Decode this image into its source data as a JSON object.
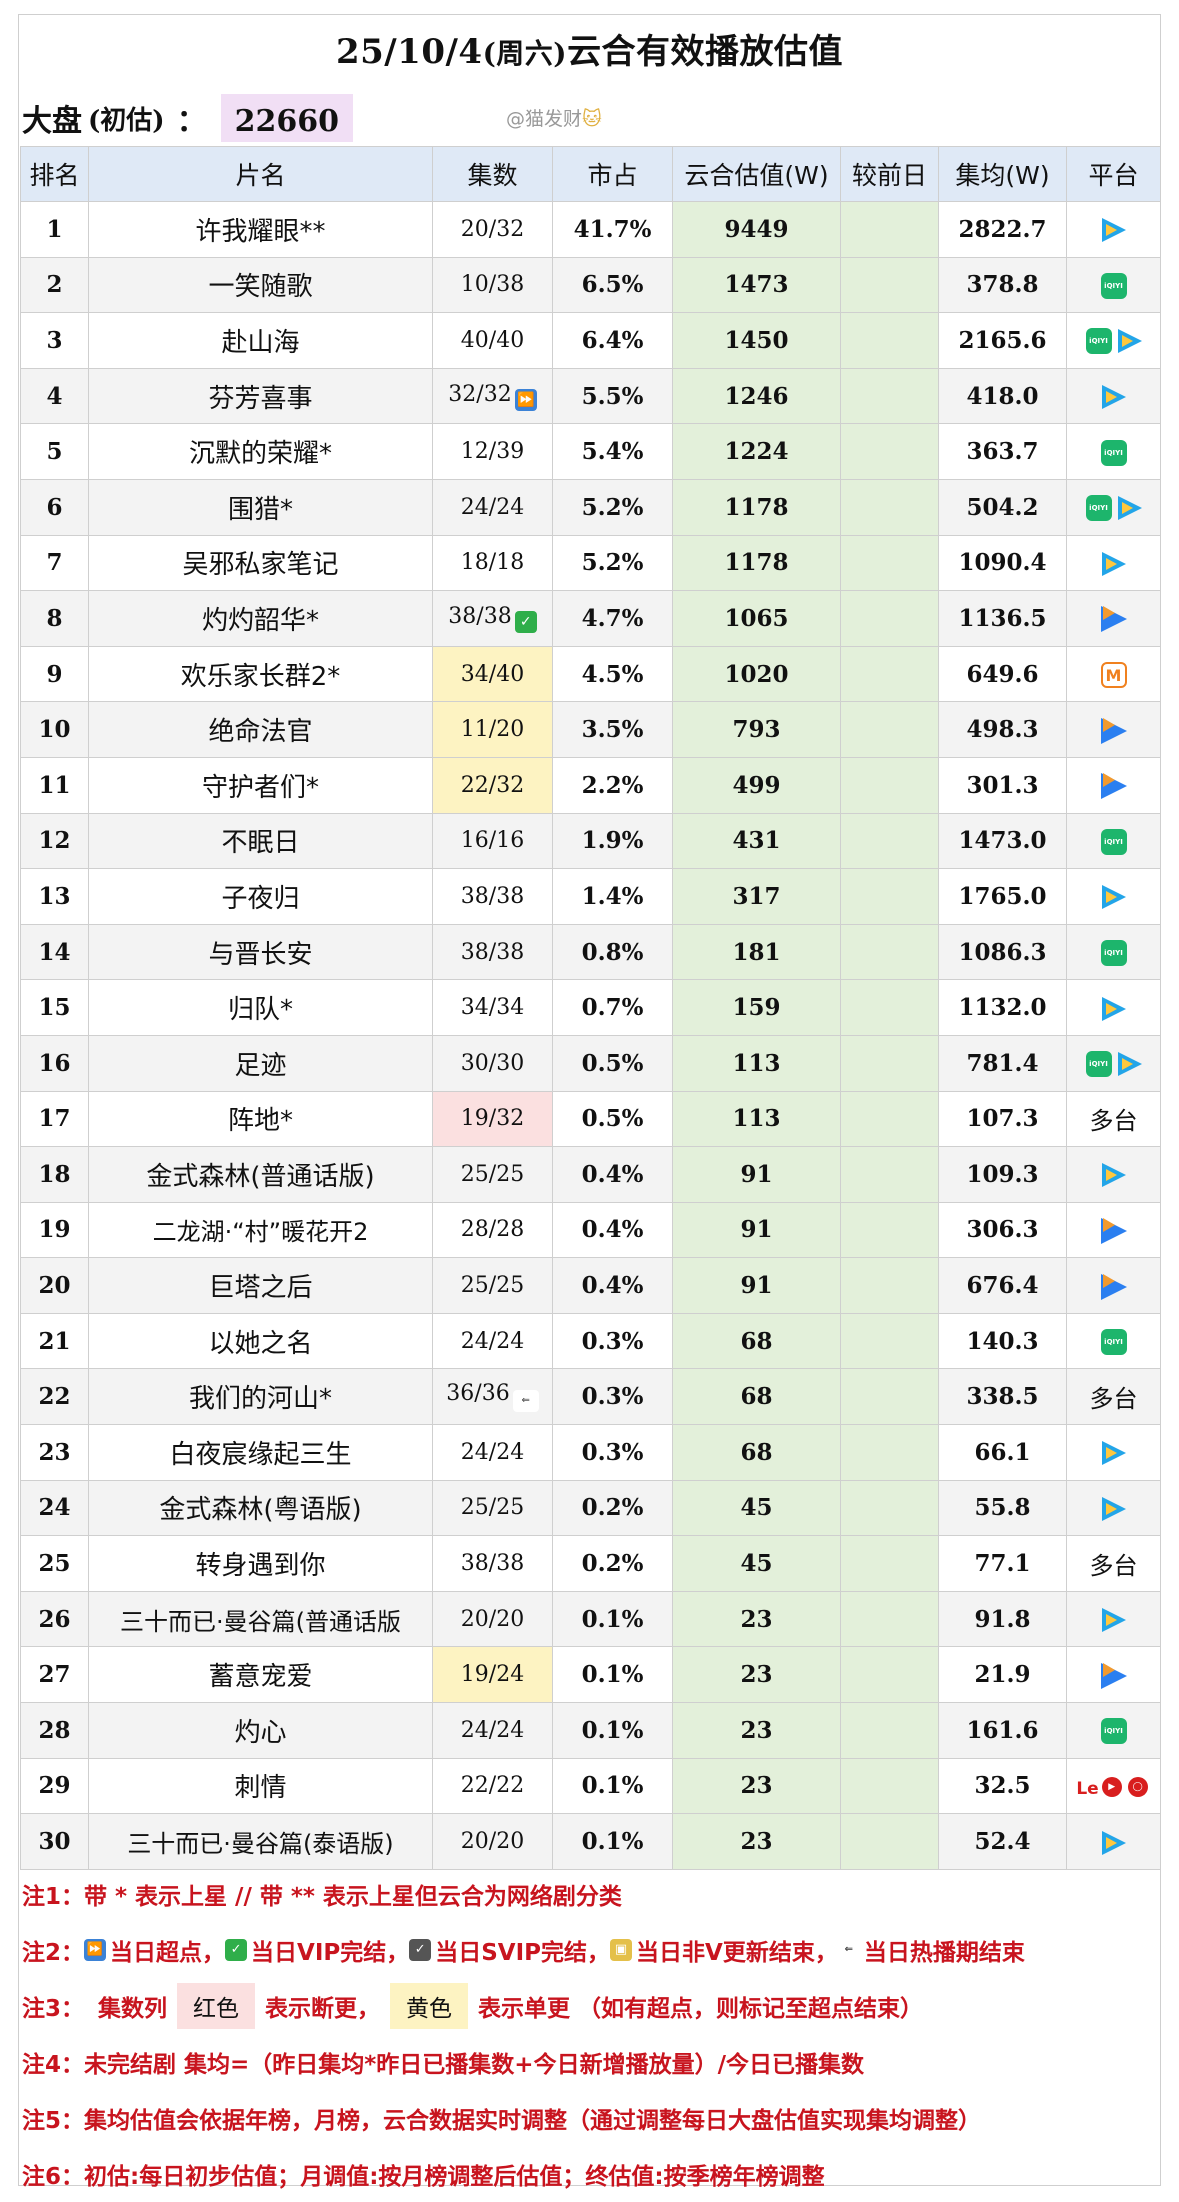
{
  "title": {
    "date": "25/10/4",
    "weekday": "(周六)",
    "text": "云合有效播放估值"
  },
  "summary": {
    "label": "大盘",
    "sub": "(初估)",
    "colon": "：",
    "value": "22660"
  },
  "watermark": {
    "text": "@猫发财",
    "emoji": "🐱"
  },
  "columns": [
    "排名",
    "片名",
    "集数",
    "市占",
    "云合估值(W)",
    "较前日",
    "集均(W)",
    "平台"
  ],
  "rows": [
    {
      "rank": "1",
      "name": "许我耀眼**",
      "ep": "20/32",
      "share": "41.7%",
      "est": "9449",
      "diff": "",
      "avg": "2822.7",
      "platforms": [
        "tencent"
      ]
    },
    {
      "rank": "2",
      "name": "一笑随歌",
      "ep": "10/38",
      "share": "6.5%",
      "est": "1473",
      "diff": "",
      "avg": "378.8",
      "platforms": [
        "iqiyi"
      ]
    },
    {
      "rank": "3",
      "name": "赴山海",
      "ep": "40/40",
      "share": "6.4%",
      "est": "1450",
      "diff": "",
      "avg": "2165.6",
      "platforms": [
        "iqiyi",
        "tencent"
      ]
    },
    {
      "rank": "4",
      "name": "芬芳喜事",
      "ep": "32/32",
      "ep_mark": "ff",
      "share": "5.5%",
      "est": "1246",
      "diff": "",
      "avg": "418.0",
      "platforms": [
        "tencent"
      ]
    },
    {
      "rank": "5",
      "name": "沉默的荣耀*",
      "ep": "12/39",
      "share": "5.4%",
      "est": "1224",
      "diff": "",
      "avg": "363.7",
      "platforms": [
        "iqiyi"
      ]
    },
    {
      "rank": "6",
      "name": "围猎*",
      "ep": "24/24",
      "share": "5.2%",
      "est": "1178",
      "diff": "",
      "avg": "504.2",
      "platforms": [
        "iqiyi",
        "tencent"
      ]
    },
    {
      "rank": "7",
      "name": "吴邪私家笔记",
      "ep": "18/18",
      "share": "5.2%",
      "est": "1178",
      "diff": "",
      "avg": "1090.4",
      "platforms": [
        "tencent"
      ]
    },
    {
      "rank": "8",
      "name": "灼灼韶华*",
      "ep": "38/38",
      "ep_mark": "ok",
      "share": "4.7%",
      "est": "1065",
      "diff": "",
      "avg": "1136.5",
      "platforms": [
        "youku"
      ]
    },
    {
      "rank": "9",
      "name": "欢乐家长群2*",
      "ep": "34/40",
      "ep_hl": "yellow",
      "share": "4.5%",
      "est": "1020",
      "diff": "",
      "avg": "649.6",
      "platforms": [
        "mgtv"
      ]
    },
    {
      "rank": "10",
      "name": "绝命法官",
      "ep": "11/20",
      "ep_hl": "yellow",
      "share": "3.5%",
      "est": "793",
      "diff": "",
      "avg": "498.3",
      "platforms": [
        "youku"
      ]
    },
    {
      "rank": "11",
      "name": "守护者们*",
      "ep": "22/32",
      "ep_hl": "yellow",
      "share": "2.2%",
      "est": "499",
      "diff": "",
      "avg": "301.3",
      "platforms": [
        "youku"
      ]
    },
    {
      "rank": "12",
      "name": "不眠日",
      "ep": "16/16",
      "share": "1.9%",
      "est": "431",
      "diff": "",
      "avg": "1473.0",
      "platforms": [
        "iqiyi"
      ]
    },
    {
      "rank": "13",
      "name": "子夜归",
      "ep": "38/38",
      "share": "1.4%",
      "est": "317",
      "diff": "",
      "avg": "1765.0",
      "platforms": [
        "tencent"
      ]
    },
    {
      "rank": "14",
      "name": "与晋长安",
      "ep": "38/38",
      "share": "0.8%",
      "est": "181",
      "diff": "",
      "avg": "1086.3",
      "platforms": [
        "iqiyi"
      ]
    },
    {
      "rank": "15",
      "name": "归队*",
      "ep": "34/34",
      "share": "0.7%",
      "est": "159",
      "diff": "",
      "avg": "1132.0",
      "platforms": [
        "tencent"
      ]
    },
    {
      "rank": "16",
      "name": "足迹",
      "ep": "30/30",
      "share": "0.5%",
      "est": "113",
      "diff": "",
      "avg": "781.4",
      "platforms": [
        "iqiyi",
        "tencent"
      ]
    },
    {
      "rank": "17",
      "name": "阵地*",
      "ep": "19/32",
      "ep_hl": "red",
      "share": "0.5%",
      "est": "113",
      "diff": "",
      "avg": "107.3",
      "platform_text": "多台"
    },
    {
      "rank": "18",
      "name": "金式森林(普通话版)",
      "ep": "25/25",
      "share": "0.4%",
      "est": "91",
      "diff": "",
      "avg": "109.3",
      "platforms": [
        "tencent"
      ]
    },
    {
      "rank": "19",
      "name": "二龙湖·“村”暖花开2",
      "ep": "28/28",
      "share": "0.4%",
      "est": "91",
      "diff": "",
      "avg": "306.3",
      "platforms": [
        "youku"
      ]
    },
    {
      "rank": "20",
      "name": "巨塔之后",
      "ep": "25/25",
      "share": "0.4%",
      "est": "91",
      "diff": "",
      "avg": "676.4",
      "platforms": [
        "youku"
      ]
    },
    {
      "rank": "21",
      "name": "以她之名",
      "ep": "24/24",
      "share": "0.3%",
      "est": "68",
      "diff": "",
      "avg": "140.3",
      "platforms": [
        "iqiyi"
      ]
    },
    {
      "rank": "22",
      "name": "我们的河山*",
      "ep": "36/36",
      "ep_mark": "end",
      "share": "0.3%",
      "est": "68",
      "diff": "",
      "avg": "338.5",
      "platform_text": "多台"
    },
    {
      "rank": "23",
      "name": "白夜宸缘起三生",
      "ep": "24/24",
      "share": "0.3%",
      "est": "68",
      "diff": "",
      "avg": "66.1",
      "platforms": [
        "tencent"
      ]
    },
    {
      "rank": "24",
      "name": "金式森林(粤语版)",
      "ep": "25/25",
      "share": "0.2%",
      "est": "45",
      "diff": "",
      "avg": "55.8",
      "platforms": [
        "tencent"
      ]
    },
    {
      "rank": "25",
      "name": "转身遇到你",
      "ep": "38/38",
      "share": "0.2%",
      "est": "45",
      "diff": "",
      "avg": "77.1",
      "platform_text": "多台"
    },
    {
      "rank": "26",
      "name": "三十而已·曼谷篇(普通话版",
      "ep": "20/20",
      "share": "0.1%",
      "est": "23",
      "diff": "",
      "avg": "91.8",
      "platforms": [
        "tencent"
      ]
    },
    {
      "rank": "27",
      "name": "蓄意宠爱",
      "ep": "19/24",
      "ep_hl": "yellow",
      "share": "0.1%",
      "est": "23",
      "diff": "",
      "avg": "21.9",
      "platforms": [
        "youku"
      ]
    },
    {
      "rank": "28",
      "name": "灼心",
      "ep": "24/24",
      "share": "0.1%",
      "est": "23",
      "diff": "",
      "avg": "161.6",
      "platforms": [
        "iqiyi"
      ]
    },
    {
      "rank": "29",
      "name": "刺情",
      "ep": "22/22",
      "share": "0.1%",
      "est": "23",
      "diff": "",
      "avg": "32.5",
      "platforms": [
        "le"
      ]
    },
    {
      "rank": "30",
      "name": "三十而已·曼谷篇(泰语版)",
      "ep": "20/20",
      "share": "0.1%",
      "est": "23",
      "diff": "",
      "avg": "52.4",
      "platforms": [
        "tencent"
      ]
    }
  ],
  "platform_labels": {
    "iqiyi": "iQIYI",
    "mgtv": "M",
    "le": "Le"
  },
  "notes": {
    "n1": "注1：带 * 表示上星 // 带 ** 表示上星但云合为网络剧分类",
    "n2": {
      "lead": "注2：",
      "a": "当日超点，",
      "b": "当日VIP完结，",
      "c": "当日SVIP完结，",
      "d": "当日非V更新结束，",
      "e": "当日热播期结束"
    },
    "n3": {
      "lead": "注3：",
      "a": "集数列",
      "red": "红色",
      "b": "表示断更，",
      "yellow": "黄色",
      "c": "表示单更 （如有超点，则标记至超点结束）"
    },
    "n4": "注4：未完结剧 集均=（昨日集均*昨日已播集数+今日新增播放量）/今日已播集数",
    "n5": "注5：集均估值会依据年榜，月榜，云合数据实时调整（通过调整每日大盘估值实现集均调整）",
    "n6": "注6：初估:每日初步估值；月调值:按月榜调整后估值；终估值:按季榜年榜调整"
  },
  "colors": {
    "header": "#dfe9f6",
    "est_col": "#e3f0da",
    "highlight_yellow": "#fdf3c2",
    "highlight_red": "#fbe0e0",
    "notes": "#c8141e"
  }
}
